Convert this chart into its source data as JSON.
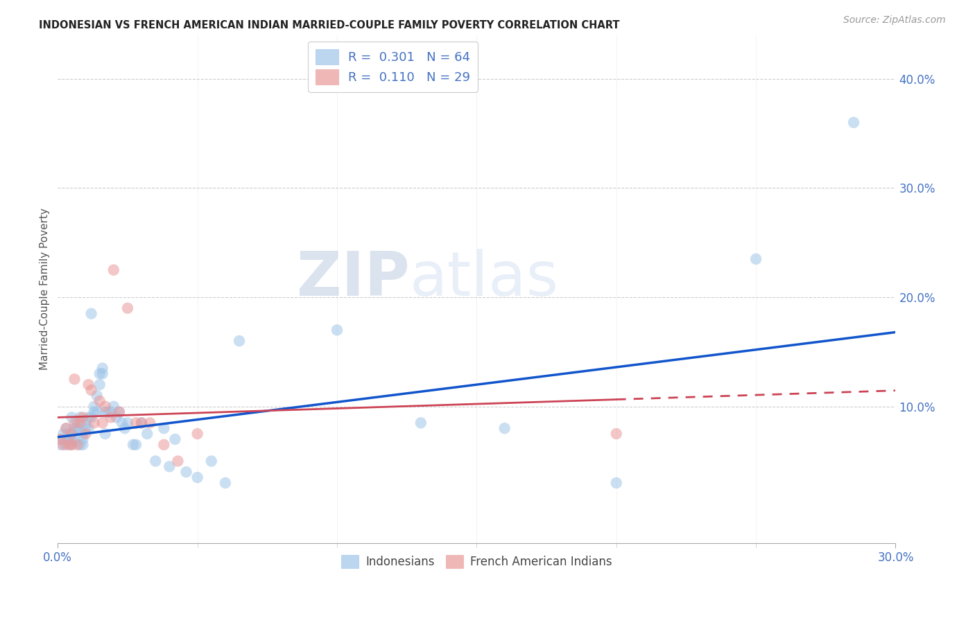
{
  "title": "INDONESIAN VS FRENCH AMERICAN INDIAN MARRIED-COUPLE FAMILY POVERTY CORRELATION CHART",
  "source": "Source: ZipAtlas.com",
  "ylabel": "Married-Couple Family Poverty",
  "xlim": [
    0.0,
    0.3
  ],
  "ylim": [
    -0.025,
    0.44
  ],
  "xticklabels": [
    "0.0%",
    "30.0%"
  ],
  "xticks": [
    0.0,
    0.3
  ],
  "yticklabels_right": [
    "10.0%",
    "20.0%",
    "30.0%",
    "40.0%"
  ],
  "yticks_right": [
    0.1,
    0.2,
    0.3,
    0.4
  ],
  "blue_color": "#9fc5e8",
  "pink_color": "#ea9999",
  "blue_line_color": "#1155cc",
  "pink_line_color": "#cc4455",
  "legend_blue_R": "0.301",
  "legend_blue_N": "64",
  "legend_pink_R": "0.110",
  "legend_pink_N": "29",
  "watermark_zip": "ZIP",
  "watermark_atlas": "atlas",
  "indonesian_x": [
    0.001,
    0.002,
    0.002,
    0.003,
    0.003,
    0.004,
    0.004,
    0.005,
    0.005,
    0.005,
    0.005,
    0.006,
    0.006,
    0.007,
    0.007,
    0.007,
    0.008,
    0.008,
    0.009,
    0.009,
    0.009,
    0.01,
    0.01,
    0.011,
    0.011,
    0.012,
    0.012,
    0.013,
    0.013,
    0.014,
    0.014,
    0.015,
    0.015,
    0.016,
    0.016,
    0.017,
    0.017,
    0.018,
    0.019,
    0.02,
    0.021,
    0.022,
    0.023,
    0.024,
    0.025,
    0.027,
    0.028,
    0.03,
    0.032,
    0.035,
    0.038,
    0.04,
    0.042,
    0.046,
    0.05,
    0.055,
    0.06,
    0.065,
    0.1,
    0.13,
    0.16,
    0.2,
    0.25,
    0.285
  ],
  "indonesian_y": [
    0.065,
    0.075,
    0.07,
    0.08,
    0.065,
    0.075,
    0.07,
    0.09,
    0.07,
    0.065,
    0.075,
    0.08,
    0.07,
    0.085,
    0.08,
    0.08,
    0.09,
    0.065,
    0.065,
    0.07,
    0.075,
    0.085,
    0.08,
    0.08,
    0.09,
    0.185,
    0.09,
    0.095,
    0.1,
    0.11,
    0.095,
    0.13,
    0.12,
    0.13,
    0.135,
    0.095,
    0.075,
    0.095,
    0.095,
    0.1,
    0.09,
    0.095,
    0.085,
    0.08,
    0.085,
    0.065,
    0.065,
    0.085,
    0.075,
    0.05,
    0.08,
    0.045,
    0.07,
    0.04,
    0.035,
    0.05,
    0.03,
    0.16,
    0.17,
    0.085,
    0.08,
    0.03,
    0.235,
    0.36
  ],
  "french_indian_x": [
    0.001,
    0.002,
    0.003,
    0.004,
    0.005,
    0.005,
    0.006,
    0.006,
    0.007,
    0.008,
    0.009,
    0.01,
    0.011,
    0.012,
    0.013,
    0.015,
    0.016,
    0.017,
    0.019,
    0.02,
    0.022,
    0.025,
    0.028,
    0.03,
    0.033,
    0.038,
    0.043,
    0.05,
    0.2
  ],
  "french_indian_y": [
    0.07,
    0.065,
    0.08,
    0.065,
    0.075,
    0.065,
    0.085,
    0.125,
    0.065,
    0.085,
    0.09,
    0.075,
    0.12,
    0.115,
    0.085,
    0.105,
    0.085,
    0.1,
    0.09,
    0.225,
    0.095,
    0.19,
    0.085,
    0.085,
    0.085,
    0.065,
    0.05,
    0.075,
    0.075
  ],
  "blue_intercept": 0.072,
  "blue_slope": 0.32,
  "pink_intercept": 0.09,
  "pink_slope": 0.082
}
